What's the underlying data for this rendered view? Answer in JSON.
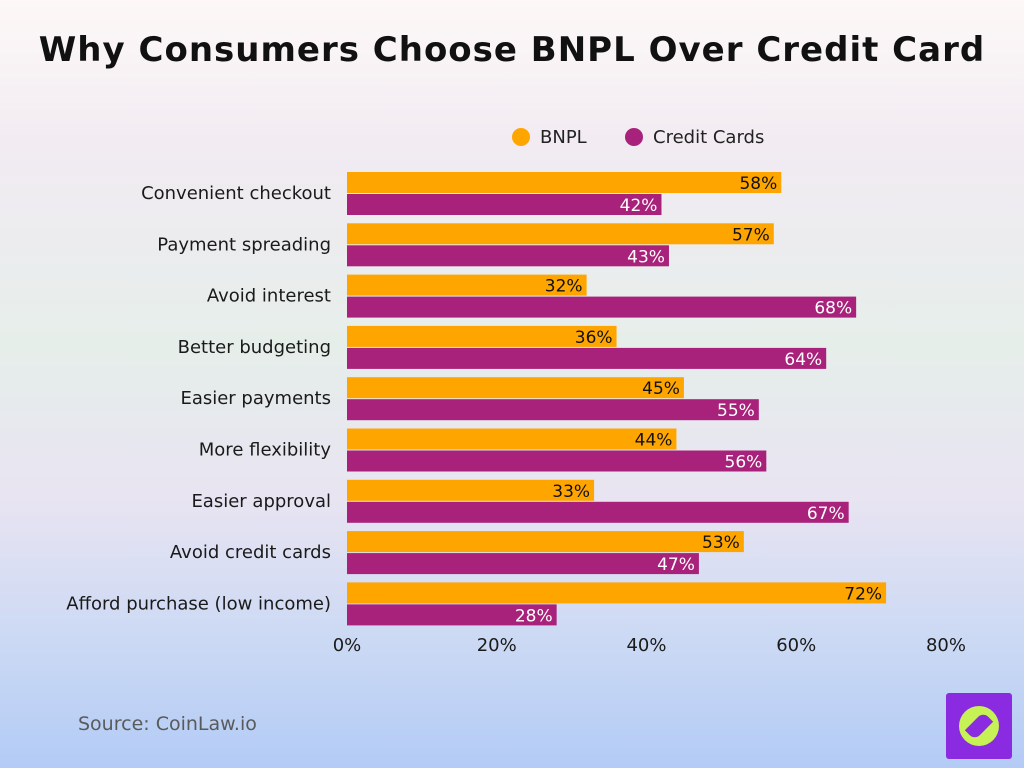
{
  "chart_data": {
    "type": "bar",
    "orientation": "horizontal",
    "title": "Why Consumers Choose BNPL Over Credit Card",
    "categories": [
      "Convenient checkout",
      "Payment spreading",
      "Avoid interest",
      "Better budgeting",
      "Easier payments",
      "More flexibility",
      "Easier approval",
      "Avoid credit cards",
      "Afford purchase (low income)"
    ],
    "series": [
      {
        "name": "BNPL",
        "color": "#ffa500",
        "label_color": "#111111",
        "values": [
          58,
          57,
          32,
          36,
          45,
          44,
          33,
          53,
          72
        ]
      },
      {
        "name": "Credit Cards",
        "color": "#a8217a",
        "label_color": "#ffffff",
        "values": [
          42,
          43,
          68,
          64,
          55,
          56,
          67,
          47,
          28
        ]
      }
    ],
    "xlim": [
      0,
      80
    ],
    "x_ticks": [
      "0%",
      "20%",
      "40%",
      "60%",
      "80%"
    ],
    "value_suffix": "%",
    "legend_position": "top-right",
    "grid": false
  },
  "source": "Source: CoinLaw.io",
  "logo_icon": "compass-icon"
}
